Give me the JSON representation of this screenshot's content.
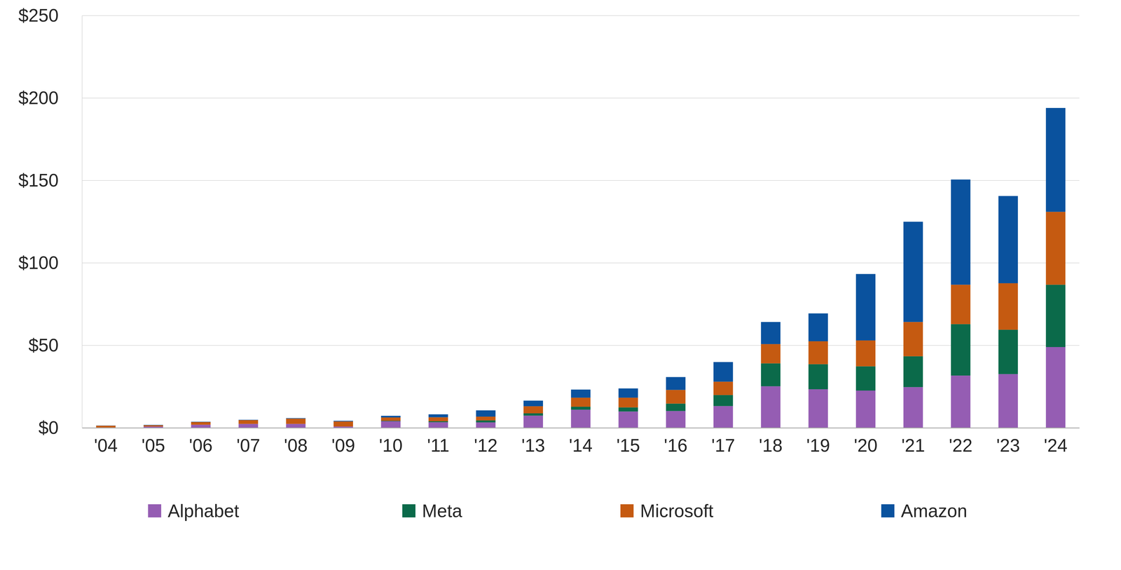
{
  "chart_data": {
    "type": "bar",
    "stacked": true,
    "grid": true,
    "legend": "bottom",
    "categories": [
      "'04",
      "'05",
      "'06",
      "'07",
      "'08",
      "'09",
      "'10",
      "'11",
      "'12",
      "'13",
      "'14",
      "'15",
      "'16",
      "'17",
      "'18",
      "'19",
      "'20",
      "'21",
      "'22",
      "'23",
      "'24"
    ],
    "series": [
      {
        "name": "Alphabet",
        "color": "#955db3",
        "values": [
          0.2,
          0.8,
          1.9,
          2.4,
          2.4,
          0.8,
          4.0,
          3.4,
          3.3,
          7.4,
          11.0,
          9.9,
          10.2,
          13.2,
          25.2,
          23.4,
          22.6,
          24.7,
          31.7,
          32.6,
          49.0
        ]
      },
      {
        "name": "Meta",
        "color": "#0b6a4a",
        "values": [
          0,
          0,
          0,
          0,
          0,
          0,
          0.3,
          0.6,
          1.2,
          1.4,
          1.8,
          2.5,
          4.5,
          6.7,
          13.9,
          15.2,
          14.7,
          18.7,
          31.2,
          26.9,
          37.8
        ]
      },
      {
        "name": "Microsoft",
        "color": "#c55a11",
        "values": [
          1.1,
          0.8,
          1.6,
          2.3,
          3.2,
          3.1,
          2.0,
          2.4,
          2.3,
          4.3,
          5.5,
          5.9,
          8.3,
          8.1,
          11.7,
          13.9,
          15.7,
          20.8,
          23.9,
          28.2,
          44.2
        ]
      },
      {
        "name": "Amazon",
        "color": "#0a529e",
        "values": [
          0.1,
          0.2,
          0.2,
          0.2,
          0.3,
          0.4,
          1.0,
          1.8,
          3.8,
          3.4,
          4.9,
          5.6,
          7.8,
          11.9,
          13.4,
          16.9,
          40.3,
          60.8,
          63.8,
          52.9,
          63.0
        ]
      }
    ],
    "ylim": [
      0,
      250
    ],
    "yticks": [
      {
        "value": 0,
        "label": "$0"
      },
      {
        "value": 50,
        "label": "$50"
      },
      {
        "value": 100,
        "label": "$100"
      },
      {
        "value": 150,
        "label": "$150"
      },
      {
        "value": 200,
        "label": "$200"
      },
      {
        "value": 250,
        "label": "$250"
      }
    ]
  }
}
